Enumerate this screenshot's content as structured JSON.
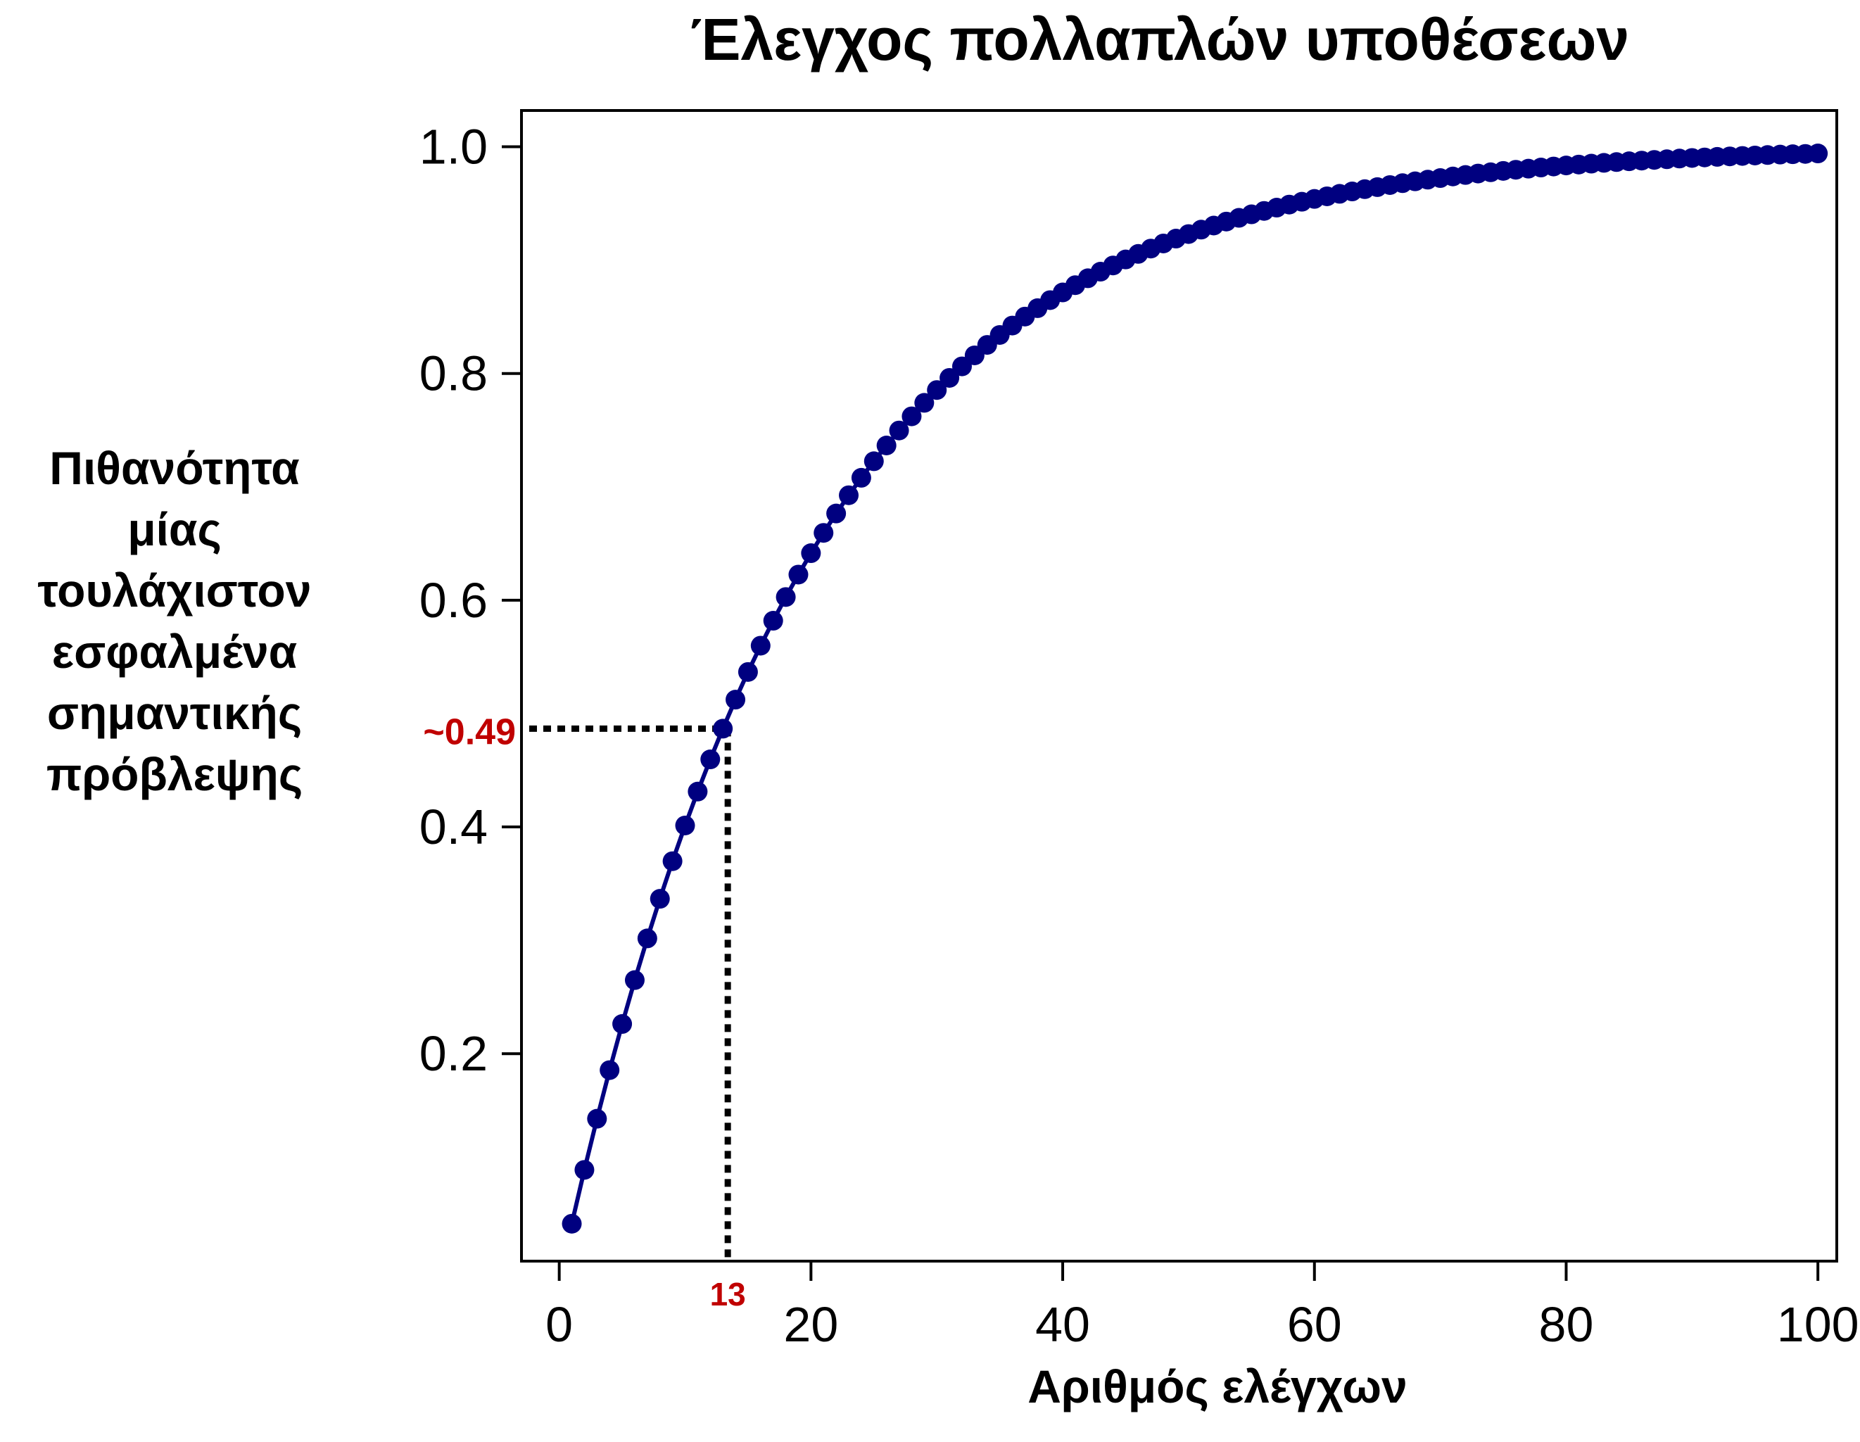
{
  "chart_data": {
    "type": "line",
    "title": "Έλεγχος πολλαπλών υποθέσεων",
    "xlabel": "Αριθμός ελέγχων",
    "ylabel_lines": [
      "Πιθανότητα",
      "μίας",
      "τουλάχιστον",
      "εσφαλμένα",
      "σημαντικής",
      "πρόβλεψης"
    ],
    "xlim": [
      -3,
      101.5
    ],
    "ylim": [
      0.017,
      1.032
    ],
    "xticks": [
      0,
      20,
      40,
      60,
      80,
      100
    ],
    "xtick_labels": [
      "0",
      "20",
      "40",
      "60",
      "80",
      "100"
    ],
    "yticks": [
      0.2,
      0.4,
      0.6,
      0.8,
      1.0
    ],
    "ytick_labels": [
      "0.2",
      "0.4",
      "0.6",
      "0.8",
      "1.0"
    ],
    "series": [
      {
        "marker": "circle",
        "color": "#000080",
        "x": [
          1,
          2,
          3,
          4,
          5,
          6,
          7,
          8,
          9,
          10,
          11,
          12,
          13,
          14,
          15,
          16,
          17,
          18,
          19,
          20,
          21,
          22,
          23,
          24,
          25,
          26,
          27,
          28,
          29,
          30,
          31,
          32,
          33,
          34,
          35,
          36,
          37,
          38,
          39,
          40,
          41,
          42,
          43,
          44,
          45,
          46,
          47,
          48,
          49,
          50,
          51,
          52,
          53,
          54,
          55,
          56,
          57,
          58,
          59,
          60,
          61,
          62,
          63,
          64,
          65,
          66,
          67,
          68,
          69,
          70,
          71,
          72,
          73,
          74,
          75,
          76,
          77,
          78,
          79,
          80,
          81,
          82,
          83,
          84,
          85,
          86,
          87,
          88,
          89,
          90,
          91,
          92,
          93,
          94,
          95,
          96,
          97,
          98,
          99,
          100
        ],
        "y": [
          0.05,
          0.0975,
          0.1426,
          0.1855,
          0.2262,
          0.2649,
          0.3017,
          0.3366,
          0.3698,
          0.4013,
          0.4312,
          0.4596,
          0.4867,
          0.5123,
          0.5367,
          0.5599,
          0.5819,
          0.6028,
          0.6226,
          0.6415,
          0.6594,
          0.6765,
          0.6926,
          0.708,
          0.7226,
          0.7365,
          0.7497,
          0.7622,
          0.7741,
          0.7854,
          0.7961,
          0.8063,
          0.816,
          0.8252,
          0.834,
          0.8423,
          0.8502,
          0.8576,
          0.8647,
          0.8715,
          0.8779,
          0.884,
          0.8898,
          0.8953,
          0.9006,
          0.9055,
          0.9102,
          0.9147,
          0.919,
          0.923,
          0.9269,
          0.9305,
          0.934,
          0.9373,
          0.9404,
          0.9434,
          0.9463,
          0.949,
          0.9515,
          0.954,
          0.9563,
          0.9585,
          0.9606,
          0.9626,
          0.9644,
          0.9662,
          0.9679,
          0.9695,
          0.971,
          0.9724,
          0.9738,
          0.9751,
          0.9764,
          0.9775,
          0.9787,
          0.9797,
          0.9807,
          0.9817,
          0.9826,
          0.9835,
          0.9843,
          0.9851,
          0.9858,
          0.9865,
          0.9872,
          0.9878,
          0.9884,
          0.989,
          0.9896,
          0.9901,
          0.9906,
          0.9911,
          0.9915,
          0.9919,
          0.9923,
          0.9927,
          0.9931,
          0.9934,
          0.9937,
          0.9941
        ]
      }
    ],
    "annotation": {
      "x": 13,
      "y": 0.4867,
      "x_label": "13",
      "y_label": "~0.49",
      "color": "#c00000",
      "style": "dotted"
    },
    "grid": false,
    "legend": "none"
  }
}
